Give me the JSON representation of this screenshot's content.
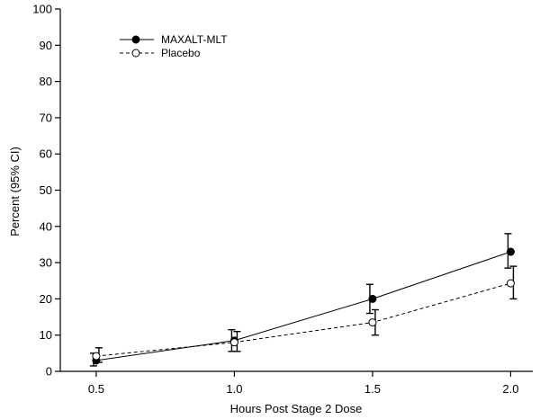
{
  "chart_data": {
    "type": "line",
    "title": "",
    "xlabel": "Hours Post Stage 2 Dose",
    "ylabel": "Percent (95% CI)",
    "xlim": [
      0.37,
      2.08
    ],
    "ylim": [
      0,
      100
    ],
    "x_ticks": [
      "0.5",
      "1.0",
      "1.5",
      "2.0"
    ],
    "y_ticks": [
      "0",
      "10",
      "20",
      "30",
      "40",
      "50",
      "60",
      "70",
      "80",
      "90",
      "100"
    ],
    "grid": false,
    "legend_position": "top-left",
    "series": [
      {
        "name": "MAXALT-MLT",
        "marker": "filled-circle",
        "line_style": "solid",
        "color": "#000000",
        "x": [
          0.5,
          1.0,
          1.5,
          2.0
        ],
        "y": [
          3,
          8.5,
          20,
          33
        ],
        "ci_low": [
          1.5,
          5.5,
          16,
          28.5
        ],
        "ci_high": [
          5,
          11.5,
          24,
          38
        ]
      },
      {
        "name": "Placebo",
        "marker": "open-circle",
        "line_style": "dashed",
        "color": "#000000",
        "x": [
          0.5,
          1.0,
          1.5,
          2.0
        ],
        "y": [
          4.2,
          8,
          13.5,
          24.3
        ],
        "ci_low": [
          2.5,
          5.5,
          10,
          20
        ],
        "ci_high": [
          6.5,
          11,
          17,
          29
        ]
      }
    ]
  }
}
